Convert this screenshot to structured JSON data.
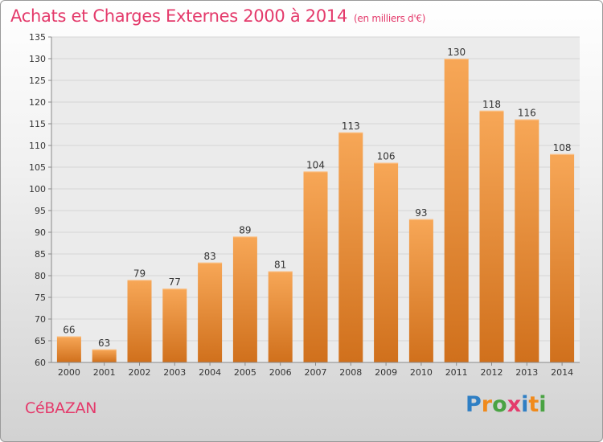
{
  "header": {
    "title": "Achats et Charges Externes 2000 à 2014",
    "subtitle": "(en milliers d'€)"
  },
  "footer": {
    "commune": "CéBAZAN",
    "logo_text": "Proxiti",
    "logo_colors": [
      "#2f7fc4",
      "#f08a1c",
      "#4aa343",
      "#e43a6b",
      "#2f7fc4",
      "#f08a1c",
      "#4aa343"
    ]
  },
  "chart_data": {
    "type": "bar",
    "categories": [
      "2000",
      "2001",
      "2002",
      "2003",
      "2004",
      "2005",
      "2006",
      "2007",
      "2008",
      "2009",
      "2010",
      "2011",
      "2012",
      "2013",
      "2014"
    ],
    "values": [
      66,
      63,
      79,
      77,
      83,
      89,
      81,
      104,
      113,
      106,
      93,
      130,
      118,
      116,
      108
    ],
    "ylim": [
      60,
      135
    ],
    "yticks": [
      60,
      65,
      70,
      75,
      80,
      85,
      90,
      95,
      100,
      105,
      110,
      115,
      120,
      125,
      130,
      135
    ],
    "grid": true,
    "bar_color_light": "#f7a757",
    "bar_color_dark": "#d0701c"
  }
}
